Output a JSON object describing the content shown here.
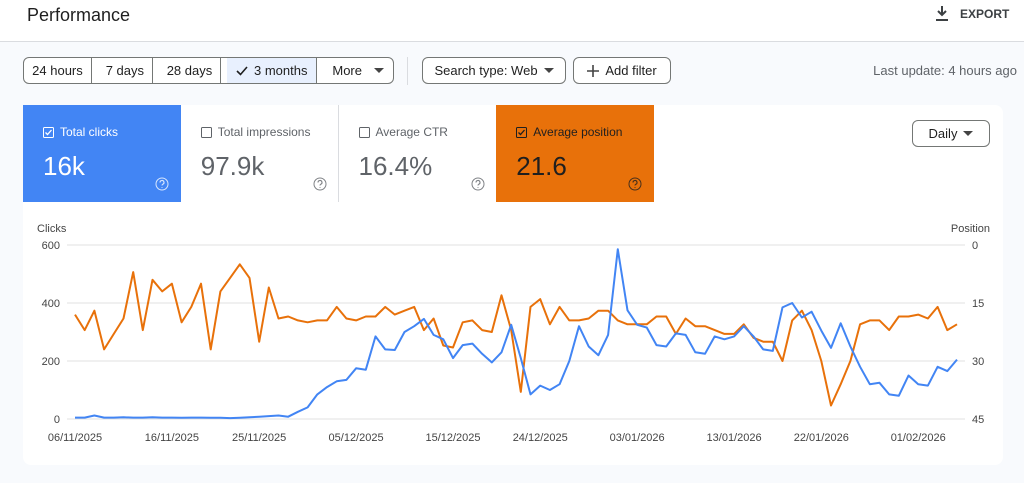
{
  "header": {
    "title": "Performance",
    "export": "EXPORT"
  },
  "toolbar": {
    "ranges": [
      {
        "label": "24 hours",
        "selected": false
      },
      {
        "label": "7 days",
        "selected": false
      },
      {
        "label": "28 days",
        "selected": false
      },
      {
        "label": "3 months",
        "selected": true
      },
      {
        "label": "More",
        "selected": false
      }
    ],
    "search_type": "Search type: Web",
    "add_filter": "Add filter",
    "last_update": "Last update: 4 hours ago"
  },
  "metrics": [
    {
      "label": "Total clicks",
      "value": "16k",
      "checked": true,
      "color": "#4285f4"
    },
    {
      "label": "Total impressions",
      "value": "97.9k",
      "checked": false,
      "color": "#ffffff"
    },
    {
      "label": "Average CTR",
      "value": "16.4%",
      "checked": false,
      "color": "#ffffff"
    },
    {
      "label": "Average position",
      "value": "21.6",
      "checked": true,
      "color": "#e8710a"
    }
  ],
  "granularity": "Daily",
  "chart_data": {
    "type": "line",
    "categories": [
      "06/11/2025",
      null,
      null,
      null,
      null,
      null,
      null,
      null,
      null,
      null,
      "16/11/2025",
      null,
      null,
      null,
      null,
      null,
      null,
      null,
      null,
      "25/11/2025",
      null,
      null,
      null,
      null,
      null,
      null,
      null,
      null,
      null,
      "05/12/2025",
      null,
      null,
      null,
      null,
      null,
      null,
      null,
      null,
      null,
      "15/12/2025",
      null,
      null,
      null,
      null,
      null,
      null,
      null,
      null,
      "24/12/2025",
      null,
      null,
      null,
      null,
      null,
      null,
      null,
      null,
      null,
      "03/01/2026",
      null,
      null,
      null,
      null,
      null,
      null,
      null,
      null,
      null,
      "13/01/2026",
      null,
      null,
      null,
      null,
      null,
      null,
      null,
      null,
      "22/01/2026",
      null,
      null,
      null,
      null,
      null,
      null,
      null,
      null,
      null,
      "01/02/2026",
      null,
      null,
      null,
      null
    ],
    "series": [
      {
        "name": "Clicks",
        "color": "#4285f4",
        "values": [
          5,
          5,
          12,
          5,
          5,
          6,
          5,
          5,
          6,
          5,
          5,
          4,
          5,
          5,
          4,
          4,
          3,
          4,
          6,
          8,
          10,
          12,
          8,
          25,
          40,
          85,
          110,
          130,
          135,
          175,
          170,
          285,
          240,
          238,
          300,
          320,
          345,
          290,
          275,
          210,
          255,
          260,
          225,
          195,
          230,
          325,
          210,
          85,
          115,
          100,
          120,
          200,
          320,
          250,
          220,
          290,
          585,
          375,
          325,
          315,
          255,
          250,
          295,
          290,
          230,
          225,
          285,
          275,
          285,
          320,
          285,
          240,
          235,
          385,
          400,
          350,
          370,
          305,
          245,
          330,
          250,
          180,
          120,
          125,
          85,
          80,
          150,
          120,
          115,
          180,
          165,
          205
        ]
      },
      {
        "name": "Position",
        "color": "#e8710a",
        "axis": "y2",
        "values": [
          18,
          22,
          17,
          27,
          23,
          19,
          7,
          22,
          9,
          12,
          10,
          20,
          16,
          10,
          27,
          12,
          8.5,
          5,
          8.5,
          25,
          11,
          19,
          18.5,
          19.5,
          20,
          19.5,
          19.5,
          16,
          19,
          19.5,
          18.5,
          18.5,
          16,
          18,
          17,
          16,
          22,
          19,
          26,
          26.5,
          20,
          19.5,
          22,
          22.5,
          13,
          22,
          38,
          16,
          14,
          20.5,
          16,
          19.5,
          19.5,
          19,
          17,
          17,
          19.5,
          20.5,
          20.5,
          20.5,
          18.5,
          18.5,
          23,
          19,
          21,
          21,
          22,
          23,
          23,
          20.5,
          24,
          25,
          25,
          30,
          19.5,
          17,
          22,
          30,
          41.5,
          36,
          30,
          20.5,
          19.5,
          19.5,
          22,
          18.5,
          18.5,
          18,
          19,
          16,
          22,
          20.5
        ]
      }
    ],
    "ylim": [
      0,
      600
    ],
    "yticks": [
      0,
      200,
      400,
      600
    ],
    "y2lim": [
      45,
      0
    ],
    "y2ticks": [
      0,
      15,
      30,
      45
    ],
    "grid": true
  }
}
